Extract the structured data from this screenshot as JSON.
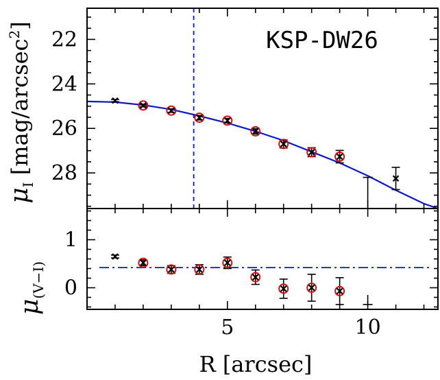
{
  "chart_data": [
    {
      "panel": "top",
      "type": "scatter",
      "title": "KSP-DW26",
      "ylabel_main": "μ",
      "ylabel_sub": "I",
      "ylabel_rest": "[mag/arcsec",
      "ylabel_sup": "2",
      "ylabel_close": "]",
      "xlim": [
        0,
        12.5
      ],
      "ylim": [
        29.6,
        20.6
      ],
      "y_inverted": true,
      "yticks": [
        22,
        24,
        26,
        28
      ],
      "vline_x": 3.8,
      "colors": {
        "data": "#000000",
        "fit": "#0a19c8",
        "marker_ring": "#cc1111"
      },
      "series": [
        {
          "kind": "points",
          "marker": "x with error bars",
          "points": [
            {
              "x": 1.0,
              "y": 24.75,
              "err": 0.05
            },
            {
              "x": 2.0,
              "y": 24.97,
              "err": 0.06
            },
            {
              "x": 3.0,
              "y": 25.2,
              "err": 0.08
            },
            {
              "x": 4.0,
              "y": 25.52,
              "err": 0.1
            },
            {
              "x": 5.0,
              "y": 25.65,
              "err": 0.1
            },
            {
              "x": 6.0,
              "y": 26.13,
              "err": 0.12
            },
            {
              "x": 7.0,
              "y": 26.7,
              "err": 0.18
            },
            {
              "x": 8.0,
              "y": 27.07,
              "err": 0.2
            },
            {
              "x": 9.0,
              "y": 27.27,
              "err": 0.28
            },
            {
              "x": 10.0,
              "y": null,
              "err_bounds": [
                28.2,
                29.6
              ]
            },
            {
              "x": 11.0,
              "y": 28.25,
              "err": 0.5
            }
          ],
          "ringed_x": [
            2,
            3,
            4,
            5,
            6,
            7,
            8,
            9
          ]
        },
        {
          "kind": "fit",
          "style": "solid",
          "points": [
            {
              "x": 0.0,
              "y": 24.79
            },
            {
              "x": 1.0,
              "y": 24.82
            },
            {
              "x": 2.0,
              "y": 24.95
            },
            {
              "x": 3.0,
              "y": 25.15
            },
            {
              "x": 4.0,
              "y": 25.44
            },
            {
              "x": 5.0,
              "y": 25.76
            },
            {
              "x": 6.0,
              "y": 26.13
            },
            {
              "x": 7.0,
              "y": 26.55
            },
            {
              "x": 8.0,
              "y": 27.05
            },
            {
              "x": 9.0,
              "y": 27.55
            },
            {
              "x": 10.0,
              "y": 28.13
            },
            {
              "x": 11.0,
              "y": 28.78
            },
            {
              "x": 12.0,
              "y": 29.38
            },
            {
              "x": 12.5,
              "y": 29.7
            }
          ]
        }
      ]
    },
    {
      "panel": "bottom",
      "type": "scatter",
      "ylabel_main": "μ",
      "ylabel_sub": "(V−I)",
      "xlabel": "R [arcsec]",
      "xlim": [
        0,
        12.5
      ],
      "ylim": [
        -0.45,
        1.65
      ],
      "yticks": [
        0,
        1
      ],
      "xticks": [
        5,
        10
      ],
      "hline_y": 0.42,
      "hline_style": "dash-dot",
      "series": [
        {
          "kind": "points",
          "marker": "x with error bars",
          "points": [
            {
              "x": 1.0,
              "y": 0.65,
              "err": 0.03
            },
            {
              "x": 2.0,
              "y": 0.52,
              "err": 0.06
            },
            {
              "x": 3.0,
              "y": 0.38,
              "err": 0.08
            },
            {
              "x": 4.0,
              "y": 0.38,
              "err": 0.1
            },
            {
              "x": 5.0,
              "y": 0.52,
              "err": 0.12
            },
            {
              "x": 6.0,
              "y": 0.22,
              "err": 0.15
            },
            {
              "x": 7.0,
              "y": -0.02,
              "err": 0.2
            },
            {
              "x": 8.0,
              "y": 0.0,
              "err": 0.28
            },
            {
              "x": 9.0,
              "y": -0.07,
              "err": 0.28
            },
            {
              "x": 10.0,
              "y": null,
              "err_bounds": [
                -0.35,
                -0.15
              ]
            }
          ],
          "ringed_x": [
            2,
            3,
            4,
            5,
            6,
            7,
            8,
            9
          ]
        }
      ]
    }
  ]
}
